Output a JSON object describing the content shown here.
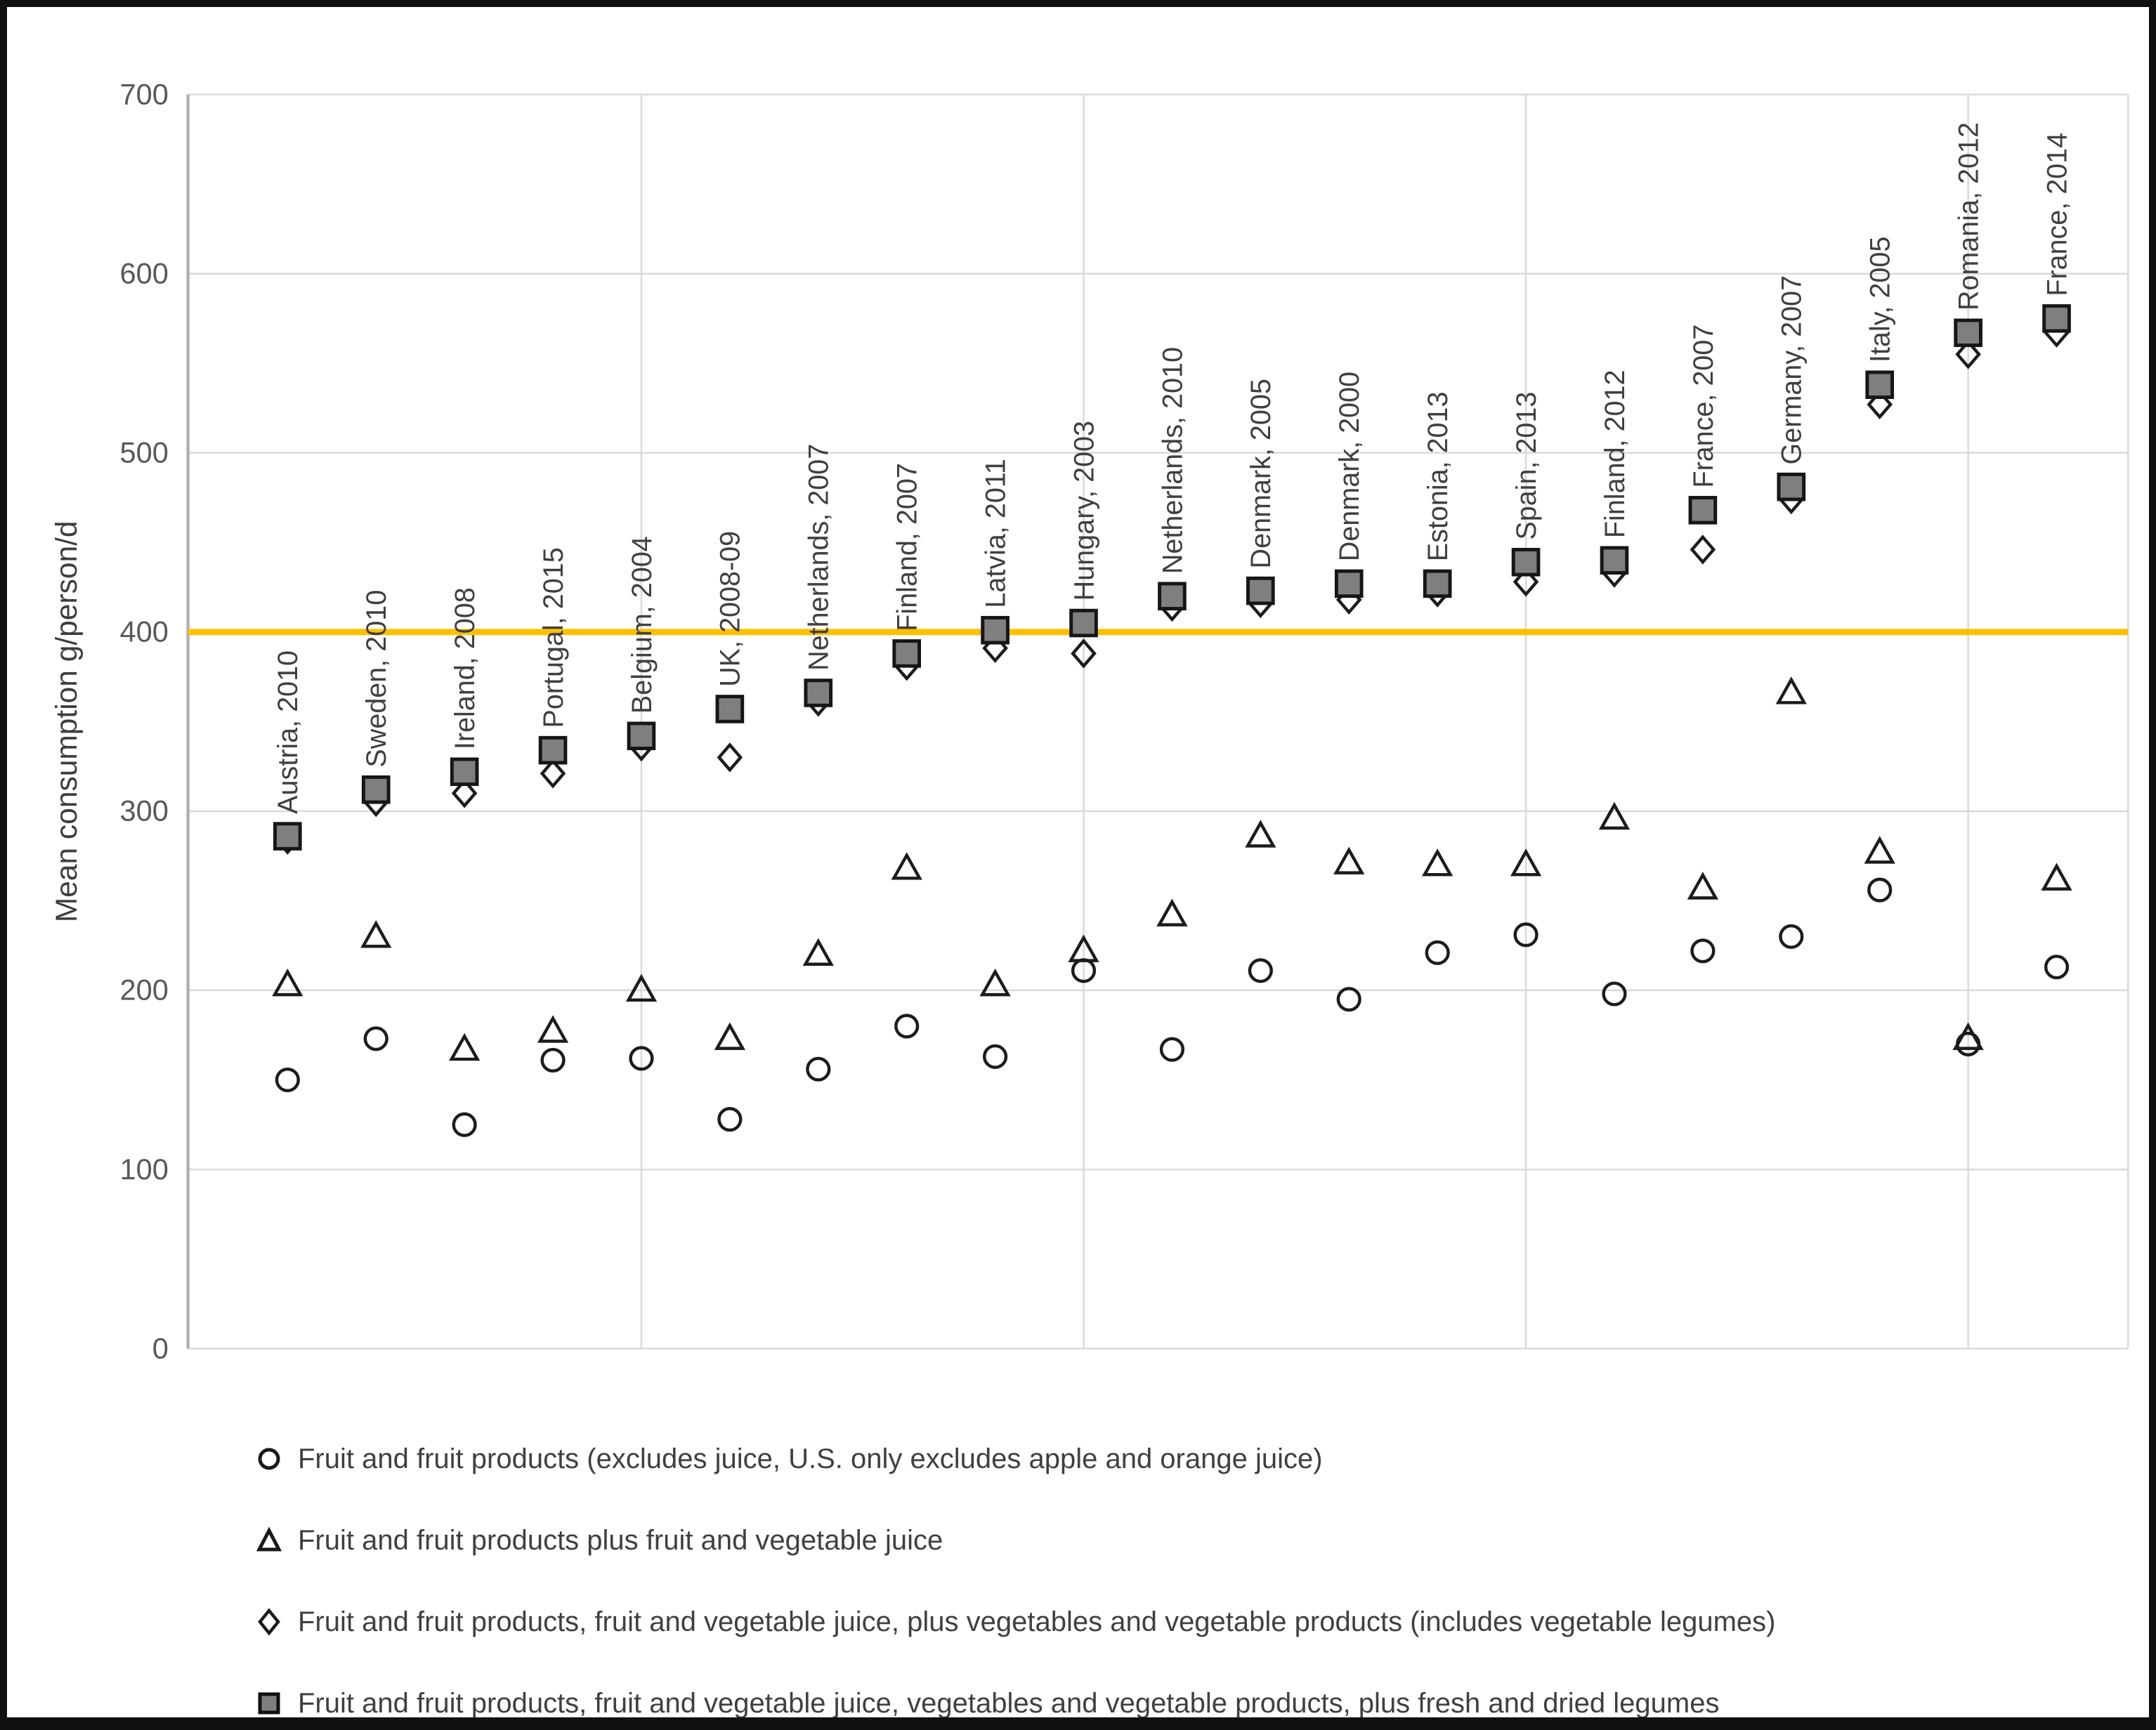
{
  "chart_data": {
    "type": "scatter",
    "title": "",
    "ylabel": "Mean consumption g/person/d",
    "xlabel": "",
    "ylim": [
      0,
      700
    ],
    "yticks": [
      "0",
      "100",
      "200",
      "300",
      "400",
      "500",
      "600",
      "700"
    ],
    "grid": true,
    "legend_position": "bottom",
    "reference_line": {
      "value": 400,
      "color": "#FFC000"
    },
    "x_gridline_category_indices": [
      4,
      9,
      14,
      19
    ],
    "categories": [
      "Austria, 2010",
      "Sweden, 2010",
      "Ireland, 2008",
      "Portugal, 2015",
      "Belgium, 2004",
      "UK, 2008-09",
      "Netherlands, 2007",
      "Finland, 2007",
      "Latvia, 2011",
      "Hungary, 2003",
      "Netherlands, 2010",
      "Denmark, 2005",
      "Denmark, 2000",
      "Estonia, 2013",
      "Spain, 2013",
      "Finland, 2012",
      "France, 2007",
      "Germany, 2007",
      "Italy, 2005",
      "Romania, 2012",
      "France, 2014"
    ],
    "series": [
      {
        "name": "Fruit and fruit products (excludes juice, U.S. only excludes apple and orange juice)",
        "marker": "circle",
        "values": [
          150,
          173,
          125,
          161,
          162,
          128,
          156,
          180,
          163,
          211,
          167,
          211,
          195,
          221,
          231,
          198,
          222,
          230,
          256,
          170,
          213
        ]
      },
      {
        "name": "Fruit and fruit products plus fruit and vegetable juice",
        "marker": "triangle",
        "values": [
          203,
          230,
          167,
          177,
          200,
          173,
          220,
          268,
          203,
          222,
          242,
          286,
          271,
          270,
          270,
          296,
          257,
          366,
          277,
          173,
          262
        ]
      },
      {
        "name": "Fruit and fruit products, fruit and vegetable juice, plus vegetables and vegetable products (includes vegetable legumes)",
        "marker": "diamond",
        "values": [
          284,
          305,
          310,
          321,
          336,
          330,
          361,
          381,
          391,
          388,
          414,
          416,
          418,
          422,
          428,
          433,
          446,
          474,
          527,
          555,
          567
        ]
      },
      {
        "name": "Fruit and fruit products, fruit and vegetable juice, vegetables and vegetable products, plus fresh and dried legumes",
        "marker": "square",
        "values": [
          286,
          312,
          322,
          334,
          342,
          357,
          366,
          388,
          401,
          405,
          420,
          423,
          427,
          427,
          439,
          440,
          468,
          481,
          538,
          567,
          575
        ]
      }
    ],
    "colors": {
      "reference_line": "#FFC000",
      "marker_stroke": "#1c1c1c",
      "square_fill": "#7f7f7f",
      "gridline": "#d9d9d9",
      "axis_line": "#b0b0b0",
      "tick_text": "#595959",
      "label_text": "#404040"
    }
  }
}
